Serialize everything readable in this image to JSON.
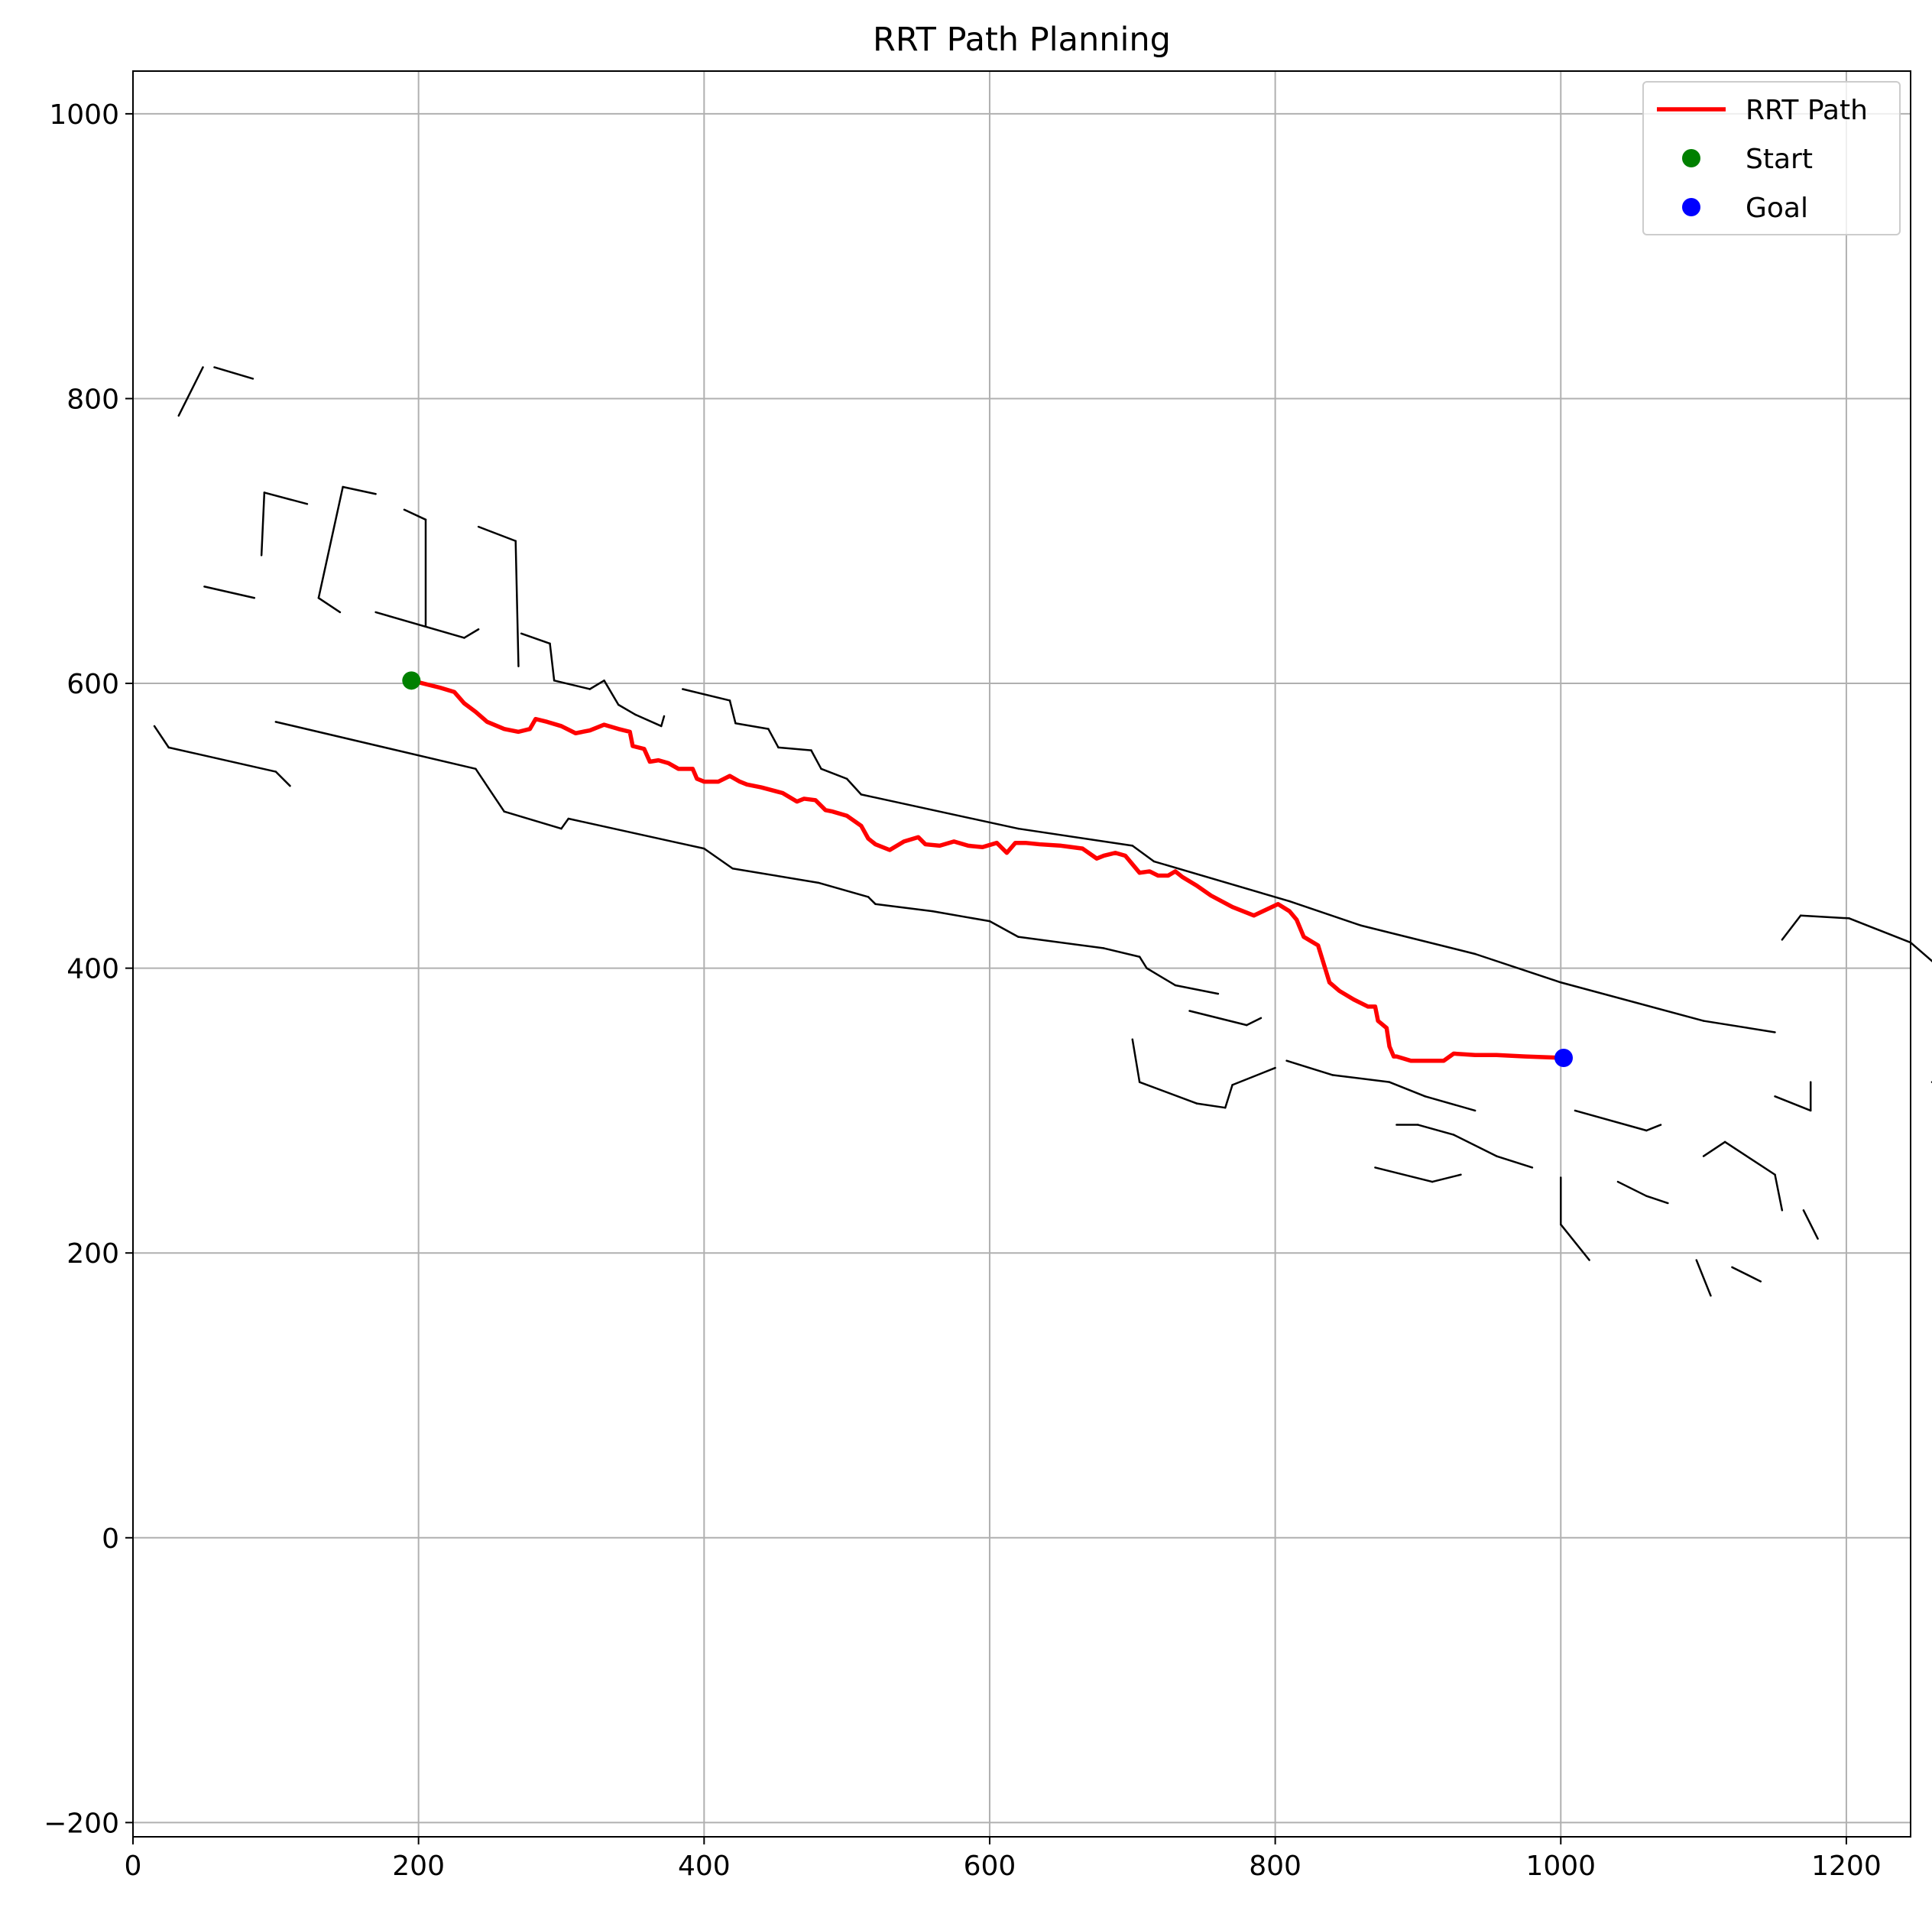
{
  "chart_data": {
    "type": "line",
    "title": "RRT Path Planning",
    "xlabel": "",
    "ylabel": "",
    "xlim": [
      0,
      1245
    ],
    "ylim": [
      -210,
      1030
    ],
    "xticks": [
      0,
      200,
      400,
      600,
      800,
      1000,
      1200
    ],
    "yticks": [
      -200,
      0,
      200,
      400,
      600,
      800,
      1000
    ],
    "xtick_labels": [
      "0",
      "200",
      "400",
      "600",
      "800",
      "1000",
      "1200"
    ],
    "ytick_labels": [
      "−200",
      "0",
      "200",
      "400",
      "600",
      "800",
      "1000"
    ],
    "grid": true,
    "legend_position": "top-right",
    "series": [
      {
        "name": "RRT Path",
        "kind": "line",
        "color": "#ff0000",
        "x": [
          195,
          215,
          225,
          232,
          240,
          248,
          260,
          270,
          278,
          282,
          290,
          300,
          310,
          320,
          330,
          340,
          348,
          350,
          358,
          362,
          368,
          375,
          382,
          392,
          395,
          400,
          410,
          418,
          425,
          430,
          440,
          455,
          465,
          470,
          478,
          485,
          490,
          500,
          510,
          515,
          520,
          530,
          540,
          550,
          555,
          565,
          575,
          585,
          595,
          605,
          612,
          618,
          625,
          635,
          650,
          665,
          675,
          680,
          688,
          695,
          705,
          712,
          718,
          725,
          730,
          735,
          745,
          755,
          770,
          785,
          802,
          810,
          815,
          820,
          825,
          830,
          838,
          838,
          845,
          855,
          865,
          870,
          872,
          878,
          880,
          883,
          885,
          895,
          905,
          918,
          925,
          940,
          955,
          975,
          1002
        ],
        "y": [
          602,
          597,
          594,
          586,
          580,
          573,
          568,
          566,
          568,
          575,
          573,
          570,
          565,
          567,
          571,
          568,
          566,
          556,
          554,
          545,
          546,
          544,
          540,
          540,
          533,
          531,
          531,
          535,
          531,
          529,
          527,
          523,
          517,
          519,
          518,
          511,
          510,
          507,
          500,
          491,
          487,
          483,
          489,
          492,
          487,
          486,
          489,
          486,
          485,
          488,
          481,
          488,
          488,
          487,
          486,
          484,
          477,
          479,
          481,
          479,
          467,
          468,
          465,
          465,
          468,
          464,
          458,
          451,
          443,
          437,
          445,
          440,
          434,
          422,
          419,
          416,
          390,
          390,
          384,
          378,
          373,
          373,
          363,
          358,
          345,
          338,
          338,
          335,
          335,
          335,
          340,
          339,
          339,
          338,
          337
        ]
      },
      {
        "name": "Start",
        "kind": "point",
        "color": "#008000",
        "x": [
          195
        ],
        "y": [
          602
        ]
      },
      {
        "name": "Goal",
        "kind": "point",
        "color": "#0000ff",
        "x": [
          1002
        ],
        "y": [
          337
        ]
      }
    ],
    "background_map": {
      "description_kind": "occupancy_point_cloud",
      "color": "#000000",
      "segments": [
        [
          [
            57,
            822
          ],
          [
            84,
            814
          ]
        ],
        [
          [
            49,
            822
          ],
          [
            32,
            788
          ]
        ],
        [
          [
            92,
            734
          ],
          [
            122,
            726
          ]
        ],
        [
          [
            92,
            734
          ],
          [
            90,
            690
          ]
        ],
        [
          [
            50,
            668
          ],
          [
            85,
            660
          ]
        ],
        [
          [
            147,
            738
          ],
          [
            170,
            733
          ]
        ],
        [
          [
            147,
            738
          ],
          [
            130,
            660
          ]
        ],
        [
          [
            130,
            660
          ],
          [
            145,
            650
          ]
        ],
        [
          [
            190,
            722
          ],
          [
            205,
            715
          ]
        ],
        [
          [
            205,
            715
          ],
          [
            205,
            640
          ]
        ],
        [
          [
            170,
            650
          ],
          [
            232,
            632
          ]
        ],
        [
          [
            232,
            632
          ],
          [
            242,
            638
          ]
        ],
        [
          [
            242,
            710
          ],
          [
            268,
            700
          ]
        ],
        [
          [
            268,
            700
          ],
          [
            270,
            612
          ]
        ],
        [
          [
            272,
            635
          ],
          [
            292,
            628
          ]
        ],
        [
          [
            292,
            628
          ],
          [
            295,
            602
          ]
        ],
        [
          [
            295,
            602
          ],
          [
            320,
            596
          ]
        ],
        [
          [
            320,
            596
          ],
          [
            330,
            602
          ]
        ],
        [
          [
            330,
            602
          ],
          [
            340,
            585
          ]
        ],
        [
          [
            340,
            585
          ],
          [
            352,
            578
          ]
        ],
        [
          [
            352,
            578
          ],
          [
            370,
            570
          ]
        ],
        [
          [
            370,
            570
          ],
          [
            372,
            577
          ]
        ],
        [
          [
            385,
            596
          ],
          [
            418,
            588
          ]
        ],
        [
          [
            418,
            588
          ],
          [
            422,
            572
          ]
        ],
        [
          [
            422,
            572
          ],
          [
            445,
            568
          ]
        ],
        [
          [
            445,
            568
          ],
          [
            452,
            555
          ]
        ],
        [
          [
            452,
            555
          ],
          [
            475,
            553
          ]
        ],
        [
          [
            475,
            553
          ],
          [
            482,
            540
          ]
        ],
        [
          [
            482,
            540
          ],
          [
            500,
            533
          ]
        ],
        [
          [
            500,
            533
          ],
          [
            510,
            522
          ]
        ],
        [
          [
            510,
            522
          ],
          [
            620,
            498
          ]
        ],
        [
          [
            620,
            498
          ],
          [
            700,
            486
          ]
        ],
        [
          [
            700,
            486
          ],
          [
            715,
            475
          ]
        ],
        [
          [
            715,
            475
          ],
          [
            810,
            447
          ]
        ],
        [
          [
            810,
            447
          ],
          [
            860,
            430
          ]
        ],
        [
          [
            860,
            430
          ],
          [
            940,
            410
          ]
        ],
        [
          [
            940,
            410
          ],
          [
            1000,
            390
          ]
        ],
        [
          [
            1000,
            390
          ],
          [
            1100,
            363
          ]
        ],
        [
          [
            1100,
            363
          ],
          [
            1150,
            355
          ]
        ],
        [
          [
            1155,
            420
          ],
          [
            1168,
            437
          ]
        ],
        [
          [
            1168,
            437
          ],
          [
            1202,
            435
          ]
        ],
        [
          [
            1202,
            435
          ],
          [
            1245,
            418
          ]
        ],
        [
          [
            1245,
            418
          ],
          [
            1260,
            405
          ]
        ],
        [
          [
            1260,
            405
          ],
          [
            1290,
            393
          ]
        ],
        [
          [
            1290,
            393
          ],
          [
            1300,
            397
          ]
        ],
        [
          [
            1300,
            397
          ],
          [
            1302,
            330
          ]
        ],
        [
          [
            1260,
            320
          ],
          [
            1292,
            305
          ]
        ],
        [
          [
            15,
            570
          ],
          [
            25,
            555
          ]
        ],
        [
          [
            25,
            555
          ],
          [
            100,
            538
          ]
        ],
        [
          [
            100,
            538
          ],
          [
            110,
            528
          ]
        ],
        [
          [
            100,
            573
          ],
          [
            240,
            540
          ]
        ],
        [
          [
            240,
            540
          ],
          [
            260,
            510
          ]
        ],
        [
          [
            260,
            510
          ],
          [
            300,
            498
          ]
        ],
        [
          [
            300,
            498
          ],
          [
            305,
            505
          ]
        ],
        [
          [
            305,
            505
          ],
          [
            400,
            484
          ]
        ],
        [
          [
            400,
            484
          ],
          [
            420,
            470
          ]
        ],
        [
          [
            420,
            470
          ],
          [
            480,
            460
          ]
        ],
        [
          [
            480,
            460
          ],
          [
            515,
            450
          ]
        ],
        [
          [
            515,
            450
          ],
          [
            520,
            445
          ]
        ],
        [
          [
            520,
            445
          ],
          [
            560,
            440
          ]
        ],
        [
          [
            560,
            440
          ],
          [
            600,
            433
          ]
        ],
        [
          [
            600,
            433
          ],
          [
            620,
            422
          ]
        ],
        [
          [
            620,
            422
          ],
          [
            680,
            414
          ]
        ],
        [
          [
            680,
            414
          ],
          [
            705,
            408
          ]
        ],
        [
          [
            705,
            408
          ],
          [
            710,
            400
          ]
        ],
        [
          [
            710,
            400
          ],
          [
            730,
            388
          ]
        ],
        [
          [
            730,
            388
          ],
          [
            760,
            382
          ]
        ],
        [
          [
            740,
            370
          ],
          [
            780,
            360
          ]
        ],
        [
          [
            780,
            360
          ],
          [
            790,
            365
          ]
        ],
        [
          [
            700,
            350
          ],
          [
            705,
            320
          ]
        ],
        [
          [
            705,
            320
          ],
          [
            745,
            305
          ]
        ],
        [
          [
            745,
            305
          ],
          [
            765,
            302
          ]
        ],
        [
          [
            765,
            302
          ],
          [
            770,
            318
          ]
        ],
        [
          [
            770,
            318
          ],
          [
            800,
            330
          ]
        ],
        [
          [
            808,
            335
          ],
          [
            840,
            325
          ]
        ],
        [
          [
            840,
            325
          ],
          [
            880,
            320
          ]
        ],
        [
          [
            880,
            320
          ],
          [
            905,
            310
          ]
        ],
        [
          [
            905,
            310
          ],
          [
            940,
            300
          ]
        ],
        [
          [
            885,
            290
          ],
          [
            900,
            290
          ]
        ],
        [
          [
            900,
            290
          ],
          [
            925,
            283
          ]
        ],
        [
          [
            925,
            283
          ],
          [
            955,
            268
          ]
        ],
        [
          [
            955,
            268
          ],
          [
            980,
            260
          ]
        ],
        [
          [
            1000,
            253
          ],
          [
            1000,
            220
          ]
        ],
        [
          [
            1000,
            220
          ],
          [
            1020,
            195
          ]
        ],
        [
          [
            870,
            260
          ],
          [
            910,
            250
          ]
        ],
        [
          [
            910,
            250
          ],
          [
            930,
            255
          ]
        ],
        [
          [
            1010,
            300
          ],
          [
            1060,
            286
          ]
        ],
        [
          [
            1060,
            286
          ],
          [
            1070,
            290
          ]
        ],
        [
          [
            1040,
            250
          ],
          [
            1060,
            240
          ]
        ],
        [
          [
            1060,
            240
          ],
          [
            1075,
            235
          ]
        ],
        [
          [
            1100,
            268
          ],
          [
            1115,
            278
          ]
        ],
        [
          [
            1115,
            278
          ],
          [
            1150,
            255
          ]
        ],
        [
          [
            1150,
            255
          ],
          [
            1155,
            230
          ]
        ],
        [
          [
            1095,
            195
          ],
          [
            1105,
            170
          ]
        ],
        [
          [
            1120,
            190
          ],
          [
            1140,
            180
          ]
        ],
        [
          [
            1170,
            230
          ],
          [
            1180,
            210
          ]
        ],
        [
          [
            1150,
            310
          ],
          [
            1175,
            300
          ]
        ],
        [
          [
            1175,
            300
          ],
          [
            1175,
            320
          ]
        ]
      ]
    }
  }
}
